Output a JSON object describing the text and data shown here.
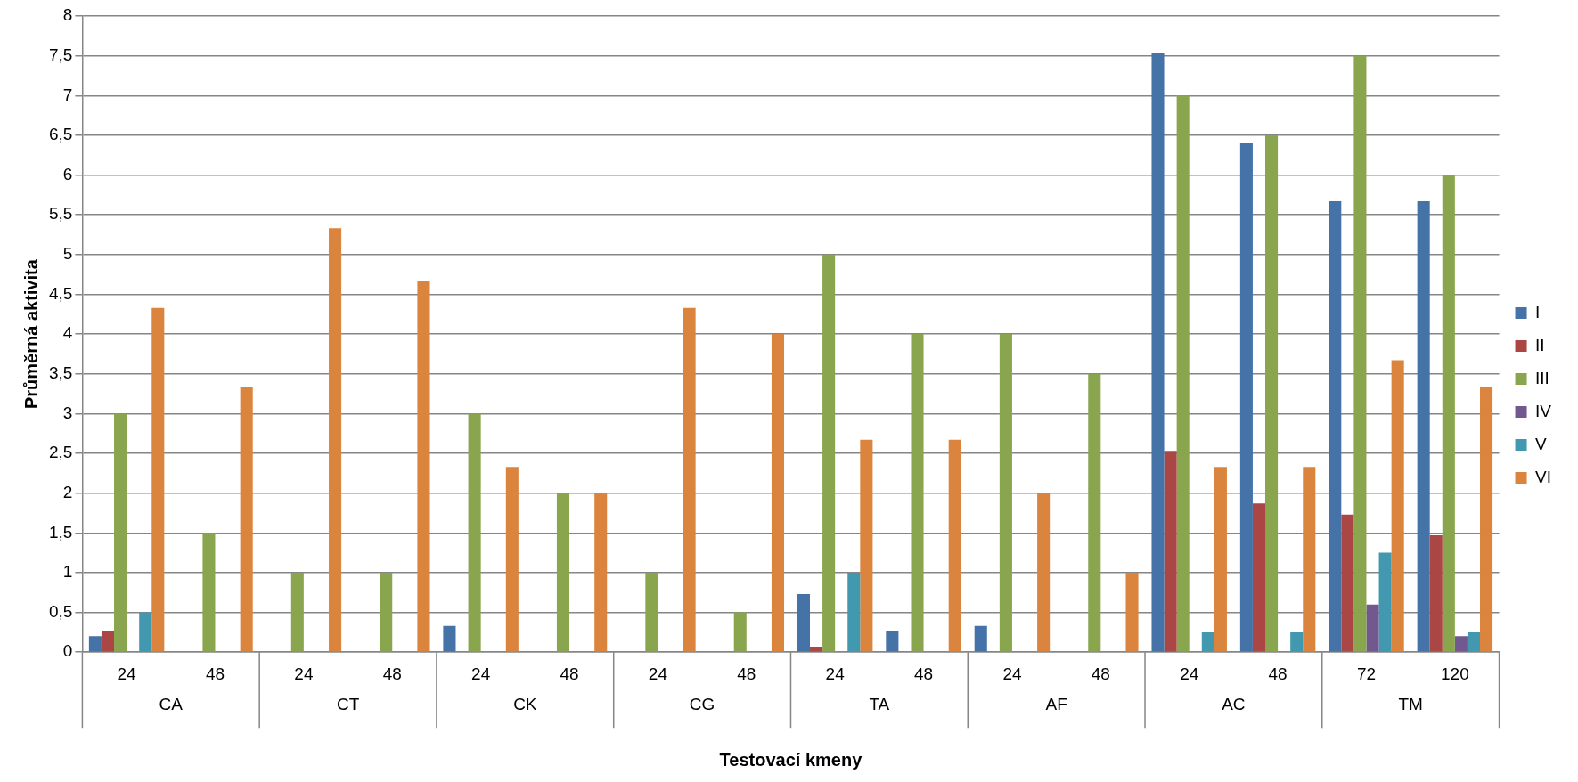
{
  "chart_data": {
    "type": "bar",
    "xlabel": "Testovací kmeny",
    "ylabel": "Průměrná aktivita",
    "categories": [
      "24",
      "48",
      "24",
      "48",
      "24",
      "48",
      "24",
      "48",
      "24",
      "48",
      "24",
      "48",
      "24",
      "48",
      "72",
      "120"
    ],
    "annotations": [
      "CA",
      "CT",
      "CK",
      "CG",
      "TA",
      "AF",
      "AC",
      "TM"
    ],
    "series": [
      {
        "name": "I",
        "color": "#4572a7",
        "values": [
          0.2,
          0,
          0,
          0,
          0.33,
          0,
          0,
          0,
          0.73,
          0.27,
          0.33,
          0,
          7.53,
          6.4,
          5.67,
          5.67
        ]
      },
      {
        "name": "II",
        "color": "#aa4643",
        "values": [
          0.27,
          0,
          0,
          0,
          0,
          0,
          0,
          0,
          0.07,
          0,
          0,
          0,
          2.53,
          1.87,
          1.73,
          1.47
        ]
      },
      {
        "name": "III",
        "color": "#89a54e",
        "values": [
          3,
          1.5,
          1,
          1,
          3,
          2,
          1,
          0.5,
          5,
          4,
          4,
          3.5,
          7,
          6.5,
          7.5,
          6
        ]
      },
      {
        "name": "IV",
        "color": "#71588f",
        "values": [
          0,
          0,
          0,
          0,
          0,
          0,
          0,
          0,
          0,
          0,
          0,
          0,
          0,
          0,
          0.6,
          0.2
        ]
      },
      {
        "name": "V",
        "color": "#4198af",
        "values": [
          0.5,
          0,
          0,
          0,
          0,
          0,
          0,
          0,
          1,
          0,
          0,
          0,
          0.25,
          0.25,
          1.25,
          0.25
        ]
      },
      {
        "name": "VI",
        "color": "#db843d",
        "values": [
          4.33,
          3.33,
          5.33,
          4.67,
          2.33,
          2,
          4.33,
          4,
          2.67,
          2.67,
          2,
          1,
          2.33,
          2.33,
          3.67,
          3.33
        ]
      }
    ],
    "ylim": [
      0,
      8
    ],
    "yticks": [
      0,
      {
        "value": 0.5,
        "label": "0,5"
      },
      1,
      {
        "value": 1.5,
        "label": "1,5"
      },
      2,
      {
        "value": 2.5,
        "label": "2,5"
      },
      3,
      {
        "value": 3.5,
        "label": "3,5"
      },
      4,
      {
        "value": 4.5,
        "label": "4,5"
      },
      5,
      {
        "value": 5.5,
        "label": "5,5"
      },
      6,
      {
        "value": 6.5,
        "label": "6,5"
      },
      7,
      {
        "value": 7.5,
        "label": "7,5"
      },
      8
    ],
    "grid": "y",
    "legend": "right"
  }
}
